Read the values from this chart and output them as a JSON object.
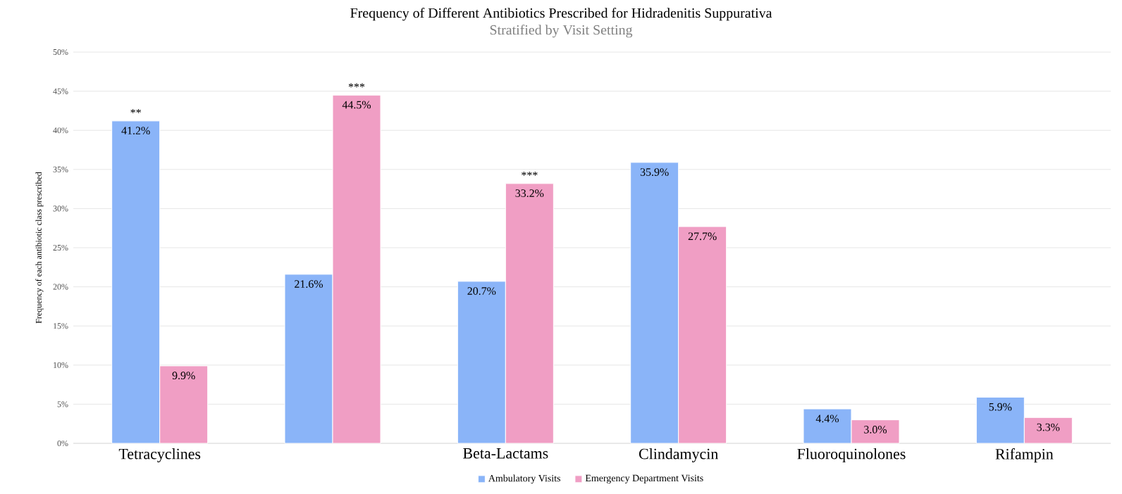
{
  "chart_data": {
    "type": "bar",
    "title": "Frequency of Different Antibiotics Prescribed for Hidradenitis Suppurativa",
    "subtitle": "Stratified by Visit Setting",
    "ylabel": "Frequency of each antibiotic class prescribed",
    "categories": [
      "Tetracyclines",
      null,
      "Beta-Lactams",
      "Clindamycin",
      "Fluoroquinolones",
      "Rifampin"
    ],
    "series": [
      {
        "name": "Ambulatory Visits",
        "color": "#8ab4f8",
        "values": [
          41.2,
          21.6,
          20.7,
          35.9,
          4.4,
          5.9
        ],
        "value_labels": [
          "41.2%",
          "21.6%",
          "20.7%",
          "35.9%",
          "4.4%",
          "5.9%"
        ]
      },
      {
        "name": "Emergency Department Visits",
        "color": "#f09ec4",
        "values": [
          9.9,
          44.5,
          33.2,
          27.7,
          3.0,
          3.3
        ],
        "value_labels": [
          "9.9%",
          "44.5%",
          "33.2%",
          "27.7%",
          "3.0%",
          "3.3%"
        ]
      }
    ],
    "ylim": [
      0,
      50
    ],
    "yticks": [
      {
        "value": 0,
        "label": "0%"
      },
      {
        "value": 5,
        "label": "5%"
      },
      {
        "value": 10,
        "label": "10%"
      },
      {
        "value": 15,
        "label": "15%"
      },
      {
        "value": 20,
        "label": "20%"
      },
      {
        "value": 25,
        "label": "25%"
      },
      {
        "value": 30,
        "label": "30%"
      },
      {
        "value": 35,
        "label": "35%"
      },
      {
        "value": 40,
        "label": "40%"
      },
      {
        "value": 45,
        "label": "45%"
      },
      {
        "value": 50,
        "label": "50%"
      }
    ],
    "grid": "y",
    "legend": "bottom",
    "annotations": [
      {
        "text": "**",
        "x": "Tetracyclines",
        "y": 41.2
      },
      {
        "text": "***",
        "y": 44.5
      },
      {
        "text": "***",
        "x": "Beta-Lactams",
        "y": 33.2
      }
    ]
  }
}
